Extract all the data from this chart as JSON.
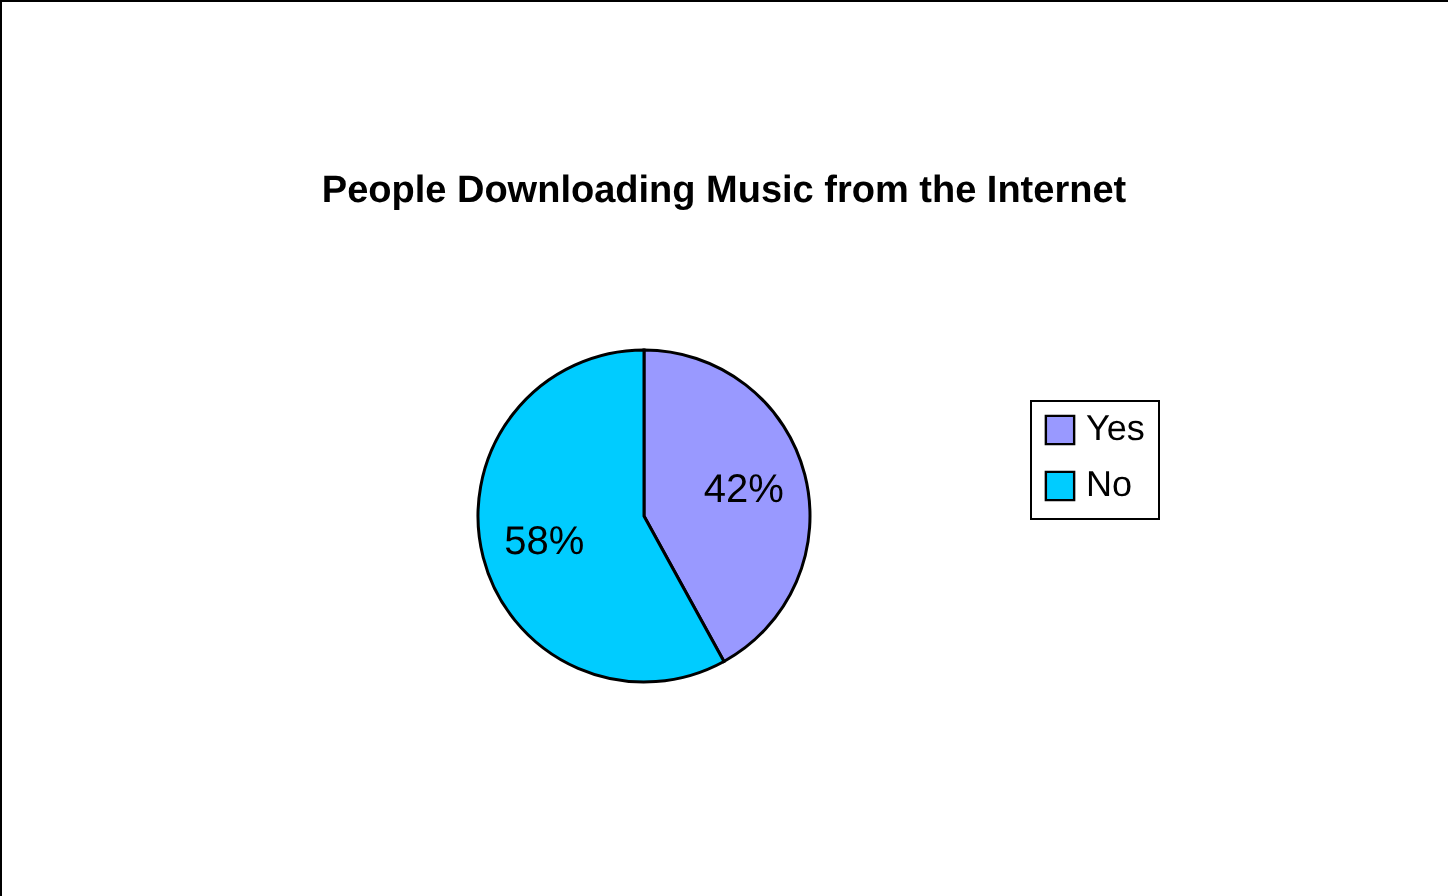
{
  "chart_data": {
    "type": "pie",
    "title": "People Downloading Music from the Internet",
    "categories": [
      "Yes",
      "No"
    ],
    "values": [
      42,
      58
    ],
    "colors": [
      "#9999ff",
      "#00ccff"
    ],
    "value_labels": [
      "42%",
      "58%"
    ],
    "legend": "right"
  }
}
